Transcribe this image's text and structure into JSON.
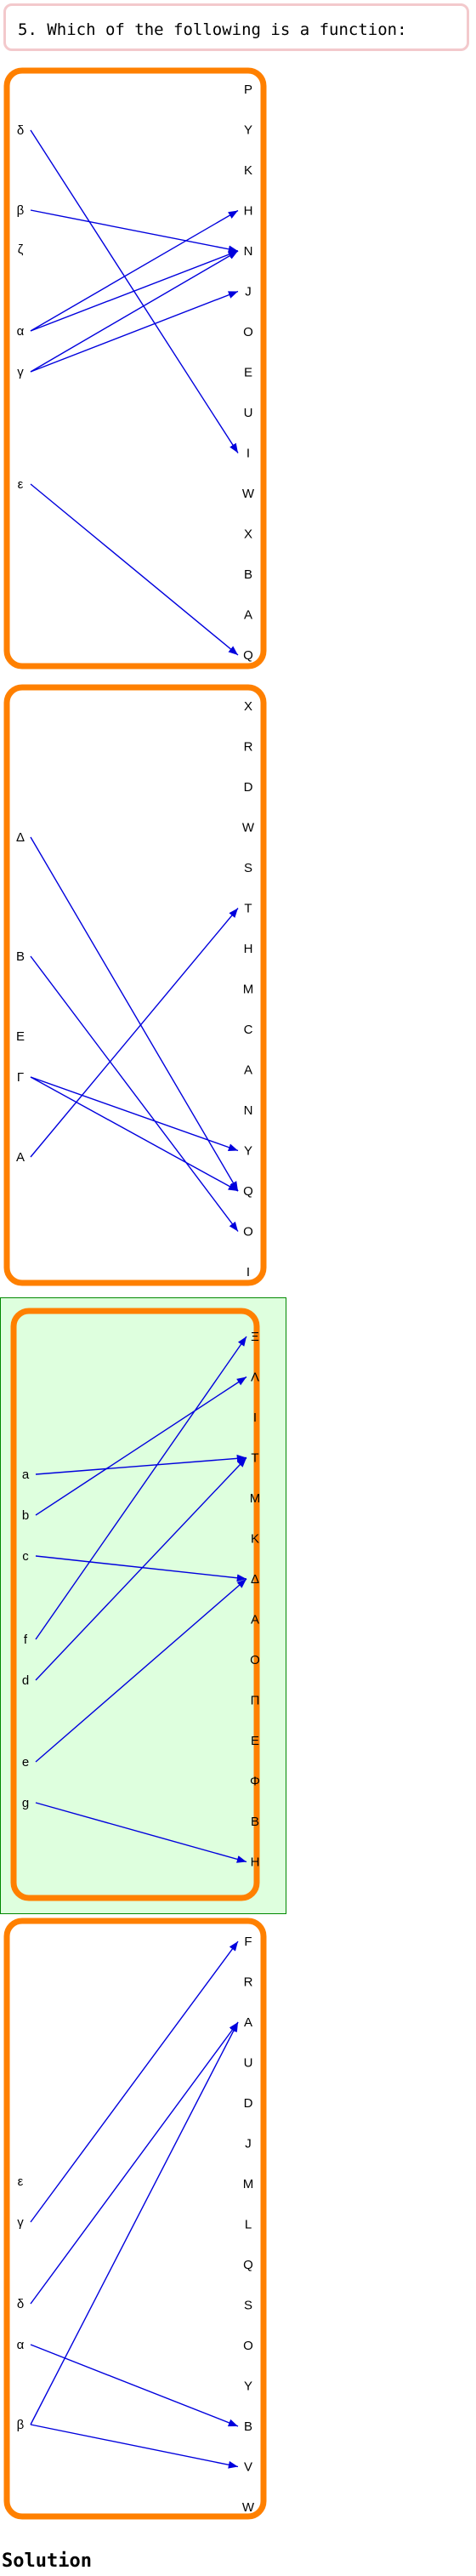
{
  "question": {
    "text": "5. Which of the following is a function:"
  },
  "solution_label": "Solution",
  "colors": {
    "frame": "#ff8000",
    "arrow": "#0000dd",
    "correct_fill": "#deffde",
    "correct_border": "#008800"
  },
  "panels": [
    {
      "correct": false,
      "domain": [
        "δ",
        "β",
        "ζ",
        "α",
        "γ",
        "ε"
      ],
      "codomain": [
        "P",
        "Y",
        "K",
        "H",
        "N",
        "J",
        "O",
        "E",
        "U",
        "I",
        "W",
        "X",
        "B",
        "A",
        "Q"
      ],
      "mappings": [
        [
          "δ",
          "I"
        ],
        [
          "β",
          "N"
        ],
        [
          "α",
          "H"
        ],
        [
          "α",
          "N"
        ],
        [
          "γ",
          "N"
        ],
        [
          "γ",
          "J"
        ],
        [
          "ε",
          "Q"
        ]
      ]
    },
    {
      "correct": false,
      "domain": [
        "Δ",
        "B",
        "E",
        "Γ",
        "A"
      ],
      "codomain": [
        "X",
        "R",
        "D",
        "W",
        "S",
        "T",
        "H",
        "M",
        "C",
        "A",
        "N",
        "Y",
        "Q",
        "O",
        "I"
      ],
      "mappings": [
        [
          "Δ",
          "Q"
        ],
        [
          "B",
          "O"
        ],
        [
          "Γ",
          "Y"
        ],
        [
          "Γ",
          "Q"
        ],
        [
          "A",
          "T"
        ]
      ]
    },
    {
      "correct": true,
      "domain": [
        "a",
        "b",
        "c",
        "f",
        "d",
        "e",
        "g"
      ],
      "codomain": [
        "Ξ",
        "Λ",
        "I",
        "T",
        "M",
        "K",
        "Δ",
        "A",
        "O",
        "Π",
        "E",
        "Φ",
        "B",
        "H"
      ],
      "mappings": [
        [
          "a",
          "T"
        ],
        [
          "b",
          "Λ"
        ],
        [
          "c",
          "Δ"
        ],
        [
          "f",
          "Ξ"
        ],
        [
          "d",
          "T"
        ],
        [
          "e",
          "Δ"
        ],
        [
          "g",
          "H"
        ]
      ]
    },
    {
      "correct": false,
      "domain": [
        "ε",
        "γ",
        "δ",
        "α",
        "β"
      ],
      "codomain": [
        "F",
        "R",
        "A",
        "U",
        "D",
        "J",
        "M",
        "L",
        "Q",
        "S",
        "O",
        "Y",
        "B",
        "V",
        "W"
      ],
      "mappings": [
        [
          "γ",
          "F"
        ],
        [
          "δ",
          "A"
        ],
        [
          "α",
          "B"
        ],
        [
          "β",
          "A"
        ],
        [
          "β",
          "V"
        ]
      ]
    }
  ]
}
